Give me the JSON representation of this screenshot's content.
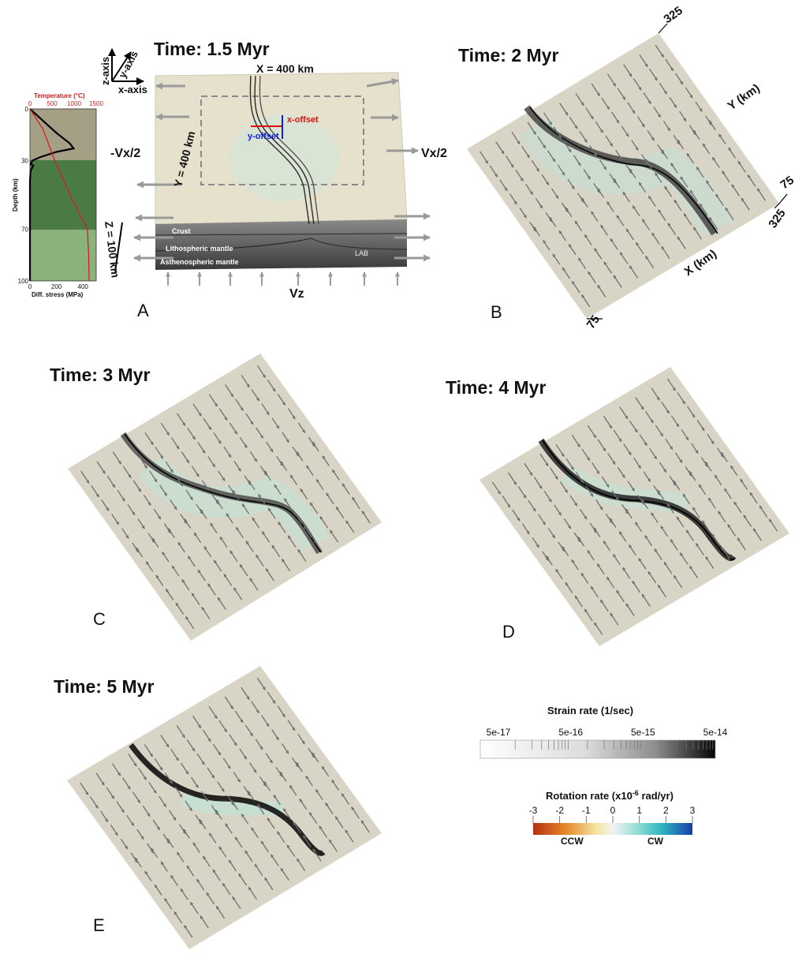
{
  "panelA": {
    "title": "Time: 1.5 Myr",
    "letter": "A",
    "axes": {
      "z": "z-axis",
      "y": "y-axis",
      "x": "x-axis"
    },
    "xdim": "X = 400 km",
    "ydim": "Y = 400 km",
    "zdim": "Z = 100 km",
    "left_vel": "-Vx/2",
    "right_vel": "Vx/2",
    "vz": "Vz",
    "x_offset": "x-offset",
    "y_offset": "y-offset",
    "layers": [
      "Crust",
      "Lithospheric mantle",
      "Asthenospheric mantle"
    ],
    "lab": "LAB"
  },
  "profile": {
    "temp_label": "Temperature (°C)",
    "temp_ticks": [
      "0",
      "500",
      "1000",
      "1500"
    ],
    "depth_label": "Depth (km)",
    "depth_ticks": [
      "0",
      "30",
      "70",
      "100"
    ],
    "stress_label": "Diff. stress (MPa)",
    "stress_ticks": [
      "0",
      "200",
      "400"
    ],
    "colors": {
      "crust": "#a59f86",
      "litho": "#4a7b45",
      "astheno": "#8bb27a",
      "temperature": "#d22020",
      "stress": "#000000"
    },
    "chart_data": {
      "type": "line",
      "xlabel": "Diff. stress (MPa)",
      "ylabel": "Depth (km)",
      "x2label": "Temperature (°C)",
      "xlim": [
        0,
        500
      ],
      "x2lim": [
        0,
        1500
      ],
      "ylim": [
        100,
        0
      ],
      "series": [
        {
          "axis": "bottom",
          "color": "#000000",
          "points": [
            [
              0,
              0
            ],
            [
              100,
              7
            ],
            [
              200,
              14
            ],
            [
              300,
              20
            ],
            [
              330,
              23
            ],
            [
              200,
              25
            ],
            [
              80,
              28
            ],
            [
              20,
              30
            ],
            [
              5,
              32
            ],
            [
              25,
              33
            ],
            [
              5,
              36
            ],
            [
              0,
              42
            ],
            [
              0,
              100
            ]
          ]
        },
        {
          "axis": "top",
          "color": "#d22020",
          "points": [
            [
              0,
              0
            ],
            [
              300,
              12
            ],
            [
              560,
              30
            ],
            [
              1000,
              55
            ],
            [
              1300,
              70
            ],
            [
              1330,
              85
            ],
            [
              1340,
              100
            ]
          ]
        }
      ]
    }
  },
  "panelB": {
    "title": "Time: 2 Myr",
    "letter": "B",
    "y_axis": "Y (km)",
    "x_axis": "X (km)",
    "ticks": [
      "325",
      "75",
      "325",
      "75"
    ]
  },
  "panelC": {
    "title": "Time: 3 Myr",
    "letter": "C"
  },
  "panelD": {
    "title": "Time: 4 Myr",
    "letter": "D"
  },
  "panelE": {
    "title": "Time: 5 Myr",
    "letter": "E"
  },
  "strain_legend": {
    "title": "Strain rate (1/sec)",
    "ticks": [
      "5e-17",
      "5e-16",
      "5e-15",
      "5e-14"
    ]
  },
  "rotation_legend": {
    "title_main": "Rotation rate (x10",
    "title_exp": "-6",
    "title_end": " rad/yr)",
    "ticks": [
      "-3",
      "-2",
      "-1",
      "0",
      "1",
      "2",
      "3"
    ],
    "ccw": "CCW",
    "cw": "CW",
    "colors": [
      "#b73010",
      "#e4862a",
      "#f5e6a0",
      "#f2f2f2",
      "#a8e4da",
      "#30b8c0",
      "#1840a8"
    ]
  }
}
